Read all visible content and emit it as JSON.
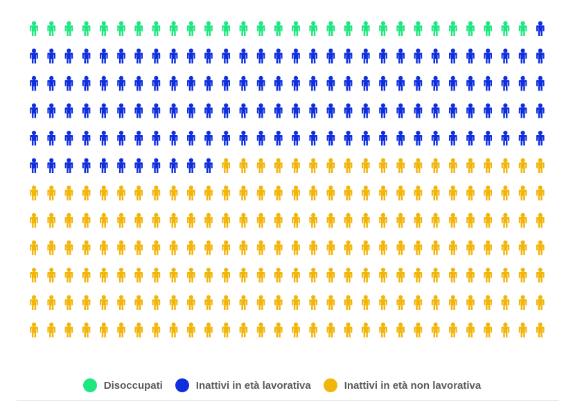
{
  "chart_data": {
    "type": "pictograph",
    "unit": "person-icon",
    "columns": 30,
    "rows": 12,
    "fill_order": "row-major",
    "title": "",
    "legend_position": "bottom-center",
    "series": [
      {
        "name": "Disoccupati",
        "count": 29,
        "color": "#1ee680"
      },
      {
        "name": "Inattivi in età lavorativa",
        "count": 132,
        "color": "#0f2fde"
      },
      {
        "name": "Inattivi in età non lavorativa",
        "count": 199,
        "color": "#f2b50c"
      }
    ]
  }
}
